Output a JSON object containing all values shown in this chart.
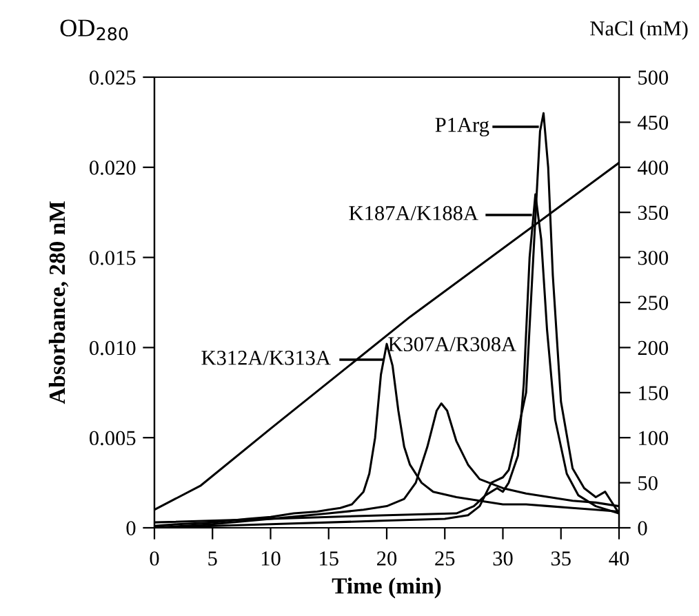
{
  "chart_data": {
    "type": "line",
    "title": "OD$_{280}$",
    "xlabel": "Time (min)",
    "ylabel": "Absorbance, 280 nM",
    "y2label": "NaCl (mM)",
    "xlim": [
      0,
      40
    ],
    "xticks": [
      0,
      5,
      10,
      15,
      20,
      25,
      30,
      35,
      40
    ],
    "ylim": [
      0,
      0.025
    ],
    "yticks": [
      0,
      {
        "value": 0.005,
        "label": "0.005"
      },
      {
        "value": 0.01,
        "label": "0.010"
      },
      {
        "value": 0.015,
        "label": "0.015"
      },
      {
        "value": 0.02,
        "label": "0.020"
      },
      {
        "value": 0.025,
        "label": "0.025"
      }
    ],
    "y2lim": [
      0,
      500
    ],
    "y2ticks": [
      0,
      50,
      100,
      150,
      200,
      250,
      300,
      350,
      400,
      450,
      500
    ],
    "grid": false,
    "legend": false,
    "marker": "none",
    "line_style": "solid",
    "series": [
      {
        "color": "#000000",
        "axis": "y2",
        "x": [
          0,
          4,
          10,
          22,
          40
        ],
        "values": [
          20,
          47,
          110,
          234,
          405
        ]
      },
      {
        "color": "#000000",
        "x": [
          0,
          2,
          5,
          8,
          10,
          12,
          14,
          15,
          16,
          17,
          18,
          18.5,
          19,
          19.5,
          20,
          20.5,
          21,
          21.5,
          22,
          23,
          24,
          26,
          28,
          30,
          32,
          34,
          36,
          38,
          40
        ],
        "values": [
          0.0001,
          0.0002,
          0.0003,
          0.0005,
          0.0006,
          0.0008,
          0.0009,
          0.001,
          0.0011,
          0.0013,
          0.002,
          0.003,
          0.005,
          0.0085,
          0.0102,
          0.009,
          0.0065,
          0.0045,
          0.0035,
          0.0025,
          0.002,
          0.0017,
          0.0015,
          0.0013,
          0.0013,
          0.0012,
          0.0011,
          0.001,
          0.0009
        ]
      },
      {
        "color": "#000000",
        "x": [
          0,
          5,
          10,
          15,
          18,
          20,
          21.5,
          22.5,
          23.5,
          24.3,
          24.7,
          25.2,
          26,
          27,
          28,
          30,
          32,
          34,
          36,
          38,
          40
        ],
        "values": [
          0,
          0.0002,
          0.0005,
          0.0008,
          0.001,
          0.0012,
          0.0016,
          0.0025,
          0.0045,
          0.0065,
          0.0069,
          0.0065,
          0.0048,
          0.0035,
          0.0027,
          0.0022,
          0.0019,
          0.0017,
          0.0015,
          0.0014,
          0.0012
        ]
      },
      {
        "color": "#000000",
        "x": [
          0,
          10,
          20,
          26,
          27.5,
          28.5,
          29.5,
          30,
          30.5,
          31.3,
          31.8,
          32.3,
          32.8,
          33.3,
          33.8,
          34.5,
          35.5,
          36.5,
          38,
          40
        ],
        "values": [
          0.0003,
          0.0005,
          0.0007,
          0.0008,
          0.0012,
          0.0018,
          0.0022,
          0.002,
          0.0025,
          0.004,
          0.008,
          0.015,
          0.0185,
          0.016,
          0.011,
          0.006,
          0.003,
          0.0018,
          0.0012,
          0.0008
        ]
      },
      {
        "color": "#000000",
        "x": [
          0,
          10,
          20,
          25,
          27,
          28,
          29,
          30,
          30.5,
          31,
          32,
          32.7,
          33.2,
          33.5,
          33.9,
          34.3,
          35,
          36,
          37,
          38,
          38.8,
          39.3,
          40
        ],
        "values": [
          0,
          0.0002,
          0.0004,
          0.0005,
          0.0007,
          0.0012,
          0.0025,
          0.0028,
          0.0032,
          0.0045,
          0.0075,
          0.016,
          0.022,
          0.023,
          0.02,
          0.014,
          0.007,
          0.0033,
          0.0022,
          0.0017,
          0.002,
          0.0015,
          0.0008
        ]
      }
    ],
    "annotations": [
      "P1Arg",
      "K187A/K188A",
      "K312A/K313A",
      {
        "text": "K307A/R308A",
        "x": 24.7,
        "y": 0.0069
      }
    ]
  }
}
